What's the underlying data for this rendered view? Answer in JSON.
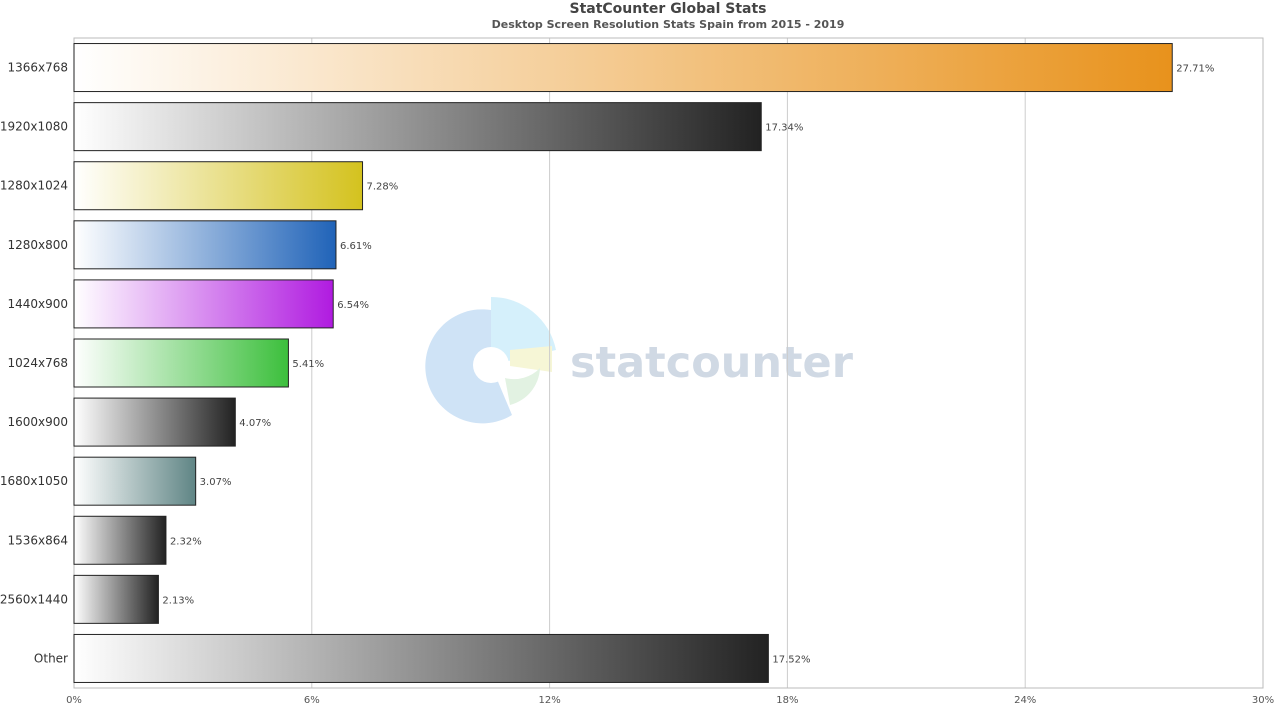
{
  "chart_data": {
    "type": "bar",
    "orientation": "horizontal",
    "title": "StatCounter Global Stats",
    "subtitle": "Desktop Screen Resolution Stats Spain from 2015 - 2019",
    "watermark": "statcounter",
    "categories": [
      "1366x768",
      "1920x1080",
      "1280x1024",
      "1280x800",
      "1440x900",
      "1024x768",
      "1600x900",
      "1680x1050",
      "1536x864",
      "2560x1440",
      "Other"
    ],
    "values": [
      27.71,
      17.34,
      7.28,
      6.61,
      6.54,
      5.41,
      4.07,
      3.07,
      2.32,
      2.13,
      17.52
    ],
    "value_labels": [
      "27.71%",
      "17.34%",
      "7.28%",
      "6.61%",
      "6.54%",
      "5.41%",
      "4.07%",
      "3.07%",
      "2.32%",
      "2.13%",
      "17.52%"
    ],
    "colors": [
      "#e8921c",
      "#222222",
      "#d4c21e",
      "#2063b8",
      "#b01be0",
      "#3cbf3c",
      "#222222",
      "#5f8585",
      "#222222",
      "#222222",
      "#222222"
    ],
    "xlim": [
      0,
      30
    ],
    "xticks": [
      0,
      6,
      12,
      18,
      24,
      30
    ],
    "xtick_labels": [
      "0%",
      "6%",
      "12%",
      "18%",
      "24%",
      "30%"
    ],
    "grid": true
  }
}
